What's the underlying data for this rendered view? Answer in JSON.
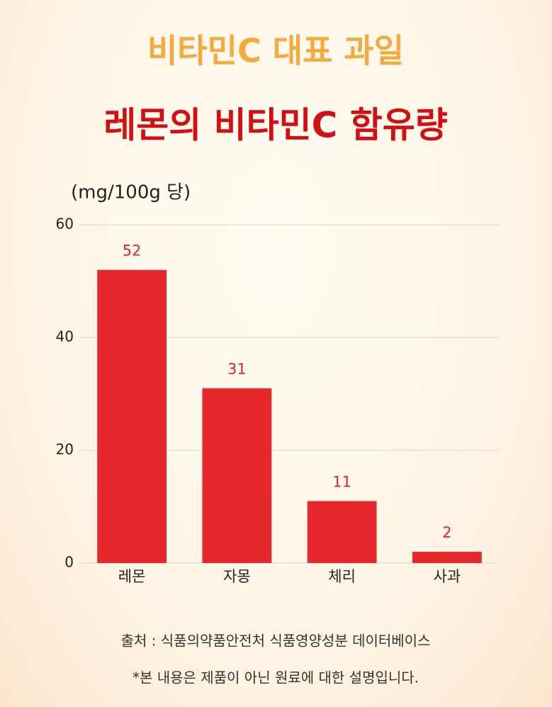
{
  "chart_data": {
    "type": "bar",
    "title": "비타민C 대표 과일",
    "subtitle": "레몬의 비타민C 함유량",
    "unit_label": "(mg/100g 당)",
    "categories": [
      "레몬",
      "자몽",
      "체리",
      "사과"
    ],
    "values": [
      52,
      31,
      11,
      2
    ],
    "color": "#e4282b",
    "ylim": [
      0,
      60
    ],
    "yticks": [
      0,
      20,
      40,
      60
    ],
    "grid": true,
    "source": "출처 : 식품의약품안전처 식품영양성분 데이터베이스",
    "note": "*본 내용은 제품이 아닌 원료에 대한 설명입니다."
  }
}
